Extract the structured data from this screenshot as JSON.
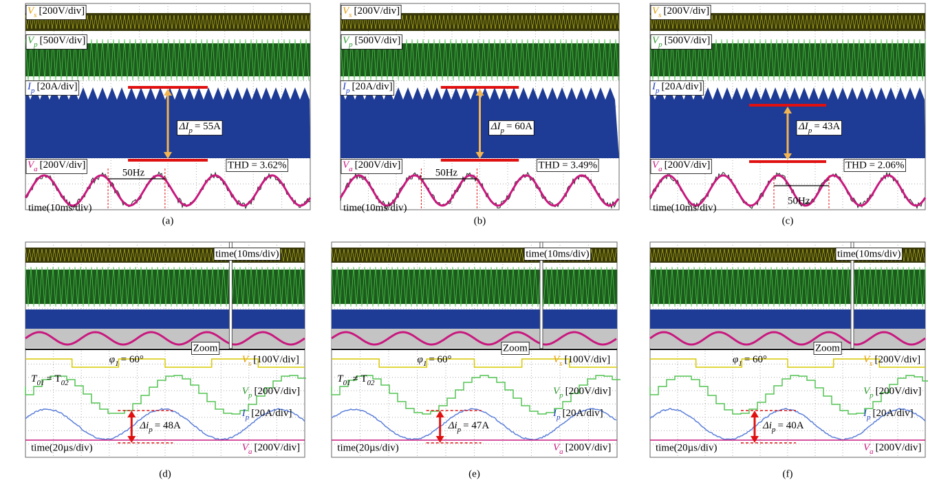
{
  "figure": {
    "panels": [
      {
        "caption": "(a)",
        "channels": [
          {
            "symbol": "V",
            "sub": "s",
            "scale": "[200V/div]"
          },
          {
            "symbol": "V",
            "sub": "p",
            "scale": "[500V/div]"
          },
          {
            "symbol": "I",
            "sub": "p",
            "scale": "[20A/div]"
          },
          {
            "symbol": "V",
            "sub": "a",
            "scale": "[200V/div]"
          }
        ],
        "delta": {
          "symbol": "ΔI",
          "sub": "p",
          "value": "= 55A"
        },
        "thd": "THD = 3.62%",
        "freq": "50Hz",
        "time": "time(10ms/div)"
      },
      {
        "caption": "(b)",
        "channels": [
          {
            "symbol": "V",
            "sub": "s",
            "scale": "[200V/div]"
          },
          {
            "symbol": "V",
            "sub": "p",
            "scale": "[500V/div]"
          },
          {
            "symbol": "I",
            "sub": "p",
            "scale": "[20A/div]"
          },
          {
            "symbol": "V",
            "sub": "a",
            "scale": "[200V/div]"
          }
        ],
        "delta": {
          "symbol": "ΔI",
          "sub": "p",
          "value": "= 60A"
        },
        "thd": "THD = 3.49%",
        "freq": "50Hz",
        "time": "time(10ms/div)"
      },
      {
        "caption": "(c)",
        "channels": [
          {
            "symbol": "V",
            "sub": "s",
            "scale": "[200V/div]"
          },
          {
            "symbol": "V",
            "sub": "p",
            "scale": "[500V/div]"
          },
          {
            "symbol": "I",
            "sub": "p",
            "scale": "[20A/div]"
          },
          {
            "symbol": "V",
            "sub": "a",
            "scale": "[200V/div]"
          }
        ],
        "delta": {
          "symbol": "ΔI",
          "sub": "p",
          "value": "= 43A"
        },
        "thd": "THD = 2.06%",
        "freq": "50Hz",
        "time": "time(10ms/div)"
      },
      {
        "caption": "(d)",
        "time_top": "time(10ms/div)",
        "zoom": "Zoom",
        "phase": {
          "symbol": "φ",
          "sub": "1",
          "value": "= 60°"
        },
        "period": {
          "symbol": "T",
          "sub": "01",
          "value": "= T",
          "sub2": "02"
        },
        "channels": [
          {
            "symbol": "V",
            "sub": "s",
            "scale": "[100V/div]"
          },
          {
            "symbol": "V",
            "sub": "p",
            "scale": "[200V/div]"
          },
          {
            "symbol": "I",
            "sub": "p",
            "scale": "[20A/div]"
          },
          {
            "symbol": "V",
            "sub": "a",
            "scale": "[200V/div]"
          }
        ],
        "delta": {
          "symbol": "Δi",
          "sub": "p",
          "value": "= 48A"
        },
        "time": "time(20µs/div)"
      },
      {
        "caption": "(e)",
        "time_top": "time(10ms/div)",
        "zoom": "Zoom",
        "phase": {
          "symbol": "φ",
          "sub": "1",
          "value": "= 60°"
        },
        "period": {
          "symbol": "T",
          "sub": "01",
          "value": "≠ T",
          "sub2": "02"
        },
        "channels": [
          {
            "symbol": "V",
            "sub": "s",
            "scale": "[100V/div]"
          },
          {
            "symbol": "V",
            "sub": "p",
            "scale": "[200V/div]"
          },
          {
            "symbol": "I",
            "sub": "p",
            "scale": "[20A/div]"
          },
          {
            "symbol": "V",
            "sub": "a",
            "scale": "[200V/div]"
          }
        ],
        "delta": {
          "symbol": "Δi",
          "sub": "p",
          "value": "= 47A"
        },
        "time": "time(20µs/div)"
      },
      {
        "caption": "(f)",
        "time_top": "time(10ms/div)",
        "zoom": "Zoom",
        "phase": {
          "symbol": "φ",
          "sub": "1",
          "value": "= 60°"
        },
        "channels": [
          {
            "symbol": "V",
            "sub": "s",
            "scale": "[200V/div]"
          },
          {
            "symbol": "V",
            "sub": "p",
            "scale": "[200V/div]"
          },
          {
            "symbol": "I",
            "sub": "p",
            "scale": "[20A/div]"
          },
          {
            "symbol": "V",
            "sub": "a",
            "scale": "[200V/div]"
          }
        ],
        "delta": {
          "symbol": "Δi",
          "sub": "p",
          "value": "= 40A"
        },
        "time": "time(20µs/div)"
      }
    ]
  }
}
